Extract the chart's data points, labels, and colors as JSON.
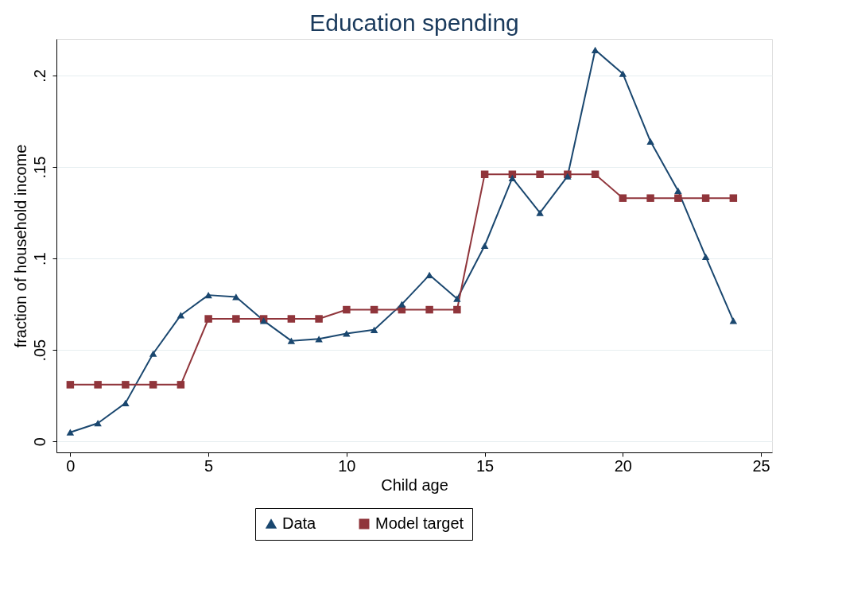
{
  "chart_data": {
    "type": "line",
    "title": "Education spending",
    "xlabel": "Child age",
    "ylabel": "fraction of household income",
    "x": [
      0,
      1,
      2,
      3,
      4,
      5,
      6,
      7,
      8,
      9,
      10,
      11,
      12,
      13,
      14,
      15,
      16,
      17,
      18,
      19,
      20,
      21,
      22,
      23,
      24
    ],
    "series": [
      {
        "name": "Data",
        "color": "#1a476f",
        "marker": "triangle",
        "values": [
          0.005,
          0.01,
          0.021,
          0.048,
          0.069,
          0.08,
          0.079,
          0.066,
          0.055,
          0.056,
          0.059,
          0.061,
          0.075,
          0.091,
          0.078,
          0.107,
          0.144,
          0.125,
          0.145,
          0.214,
          0.201,
          0.164,
          0.137,
          0.101,
          0.066
        ]
      },
      {
        "name": "Model target",
        "color": "#90353b",
        "marker": "square",
        "values": [
          0.031,
          0.031,
          0.031,
          0.031,
          0.031,
          0.067,
          0.067,
          0.067,
          0.067,
          0.067,
          0.072,
          0.072,
          0.072,
          0.072,
          0.072,
          0.146,
          0.146,
          0.146,
          0.146,
          0.146,
          0.133,
          0.133,
          0.133,
          0.133,
          0.133
        ]
      }
    ],
    "xlim": [
      -0.5,
      25.4
    ],
    "xticks": [
      0,
      5,
      10,
      15,
      20,
      25
    ],
    "ylim": [
      -0.006,
      0.22
    ],
    "yticks": [
      0,
      {
        "value": 0.05,
        "label": ".05"
      },
      {
        "value": 0.1,
        "label": ".1"
      },
      {
        "value": 0.15,
        "label": ".15"
      },
      {
        "value": 0.2,
        "label": ".2"
      }
    ],
    "grid": "y",
    "legend": "bottom",
    "line_style": "solid"
  }
}
